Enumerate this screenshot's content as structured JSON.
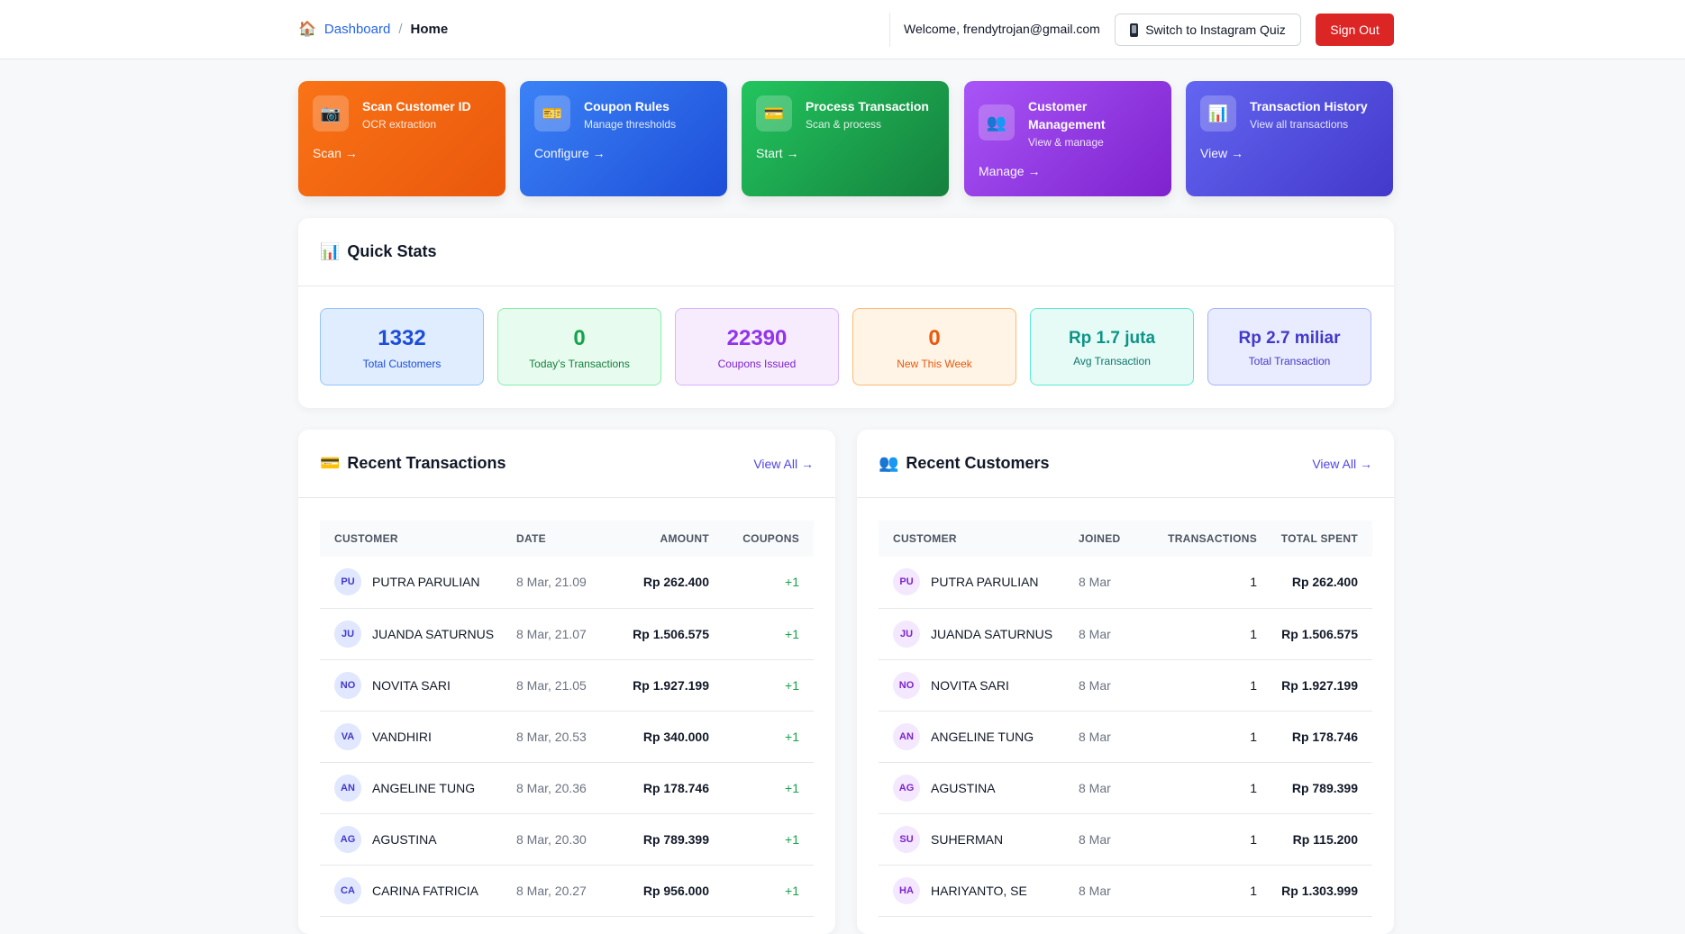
{
  "header": {
    "breadcrumb_root": "Dashboard",
    "breadcrumb_sep": "/",
    "breadcrumb_current": "Home",
    "welcome": "Welcome, frendytrojan@gmail.com",
    "switch_label": "Switch to Instagram Quiz",
    "signout_label": "Sign Out"
  },
  "cards": [
    {
      "title": "Scan Customer ID",
      "subtitle": "OCR extraction",
      "action": "Scan →",
      "icon": "camera-icon",
      "color": "#f97316"
    },
    {
      "title": "Coupon Rules",
      "subtitle": "Manage thresholds",
      "action": "Configure →",
      "icon": "ticket-icon",
      "color": "#2563eb"
    },
    {
      "title": "Process Transaction",
      "subtitle": "Scan & process",
      "action": "Start →",
      "icon": "credit-card-icon",
      "color": "#16a34a"
    },
    {
      "title": "Customer Management",
      "subtitle": "View & manage",
      "action": "Manage →",
      "icon": "users-icon",
      "color": "#9333ea"
    },
    {
      "title": "Transaction History",
      "subtitle": "View all transactions",
      "action": "View →",
      "icon": "chart-icon",
      "color": "#4f46e5"
    }
  ],
  "quick_stats": {
    "title": "Quick Stats",
    "items": [
      {
        "value": "1332",
        "label": "Total Customers"
      },
      {
        "value": "0",
        "label": "Today's Transactions"
      },
      {
        "value": "22390",
        "label": "Coupons Issued"
      },
      {
        "value": "0",
        "label": "New This Week"
      },
      {
        "value": "Rp 1.7 juta",
        "label": "Avg Transaction"
      },
      {
        "value": "Rp 2.7 miliar",
        "label": "Total Transaction"
      }
    ]
  },
  "recent_transactions": {
    "title": "Recent Transactions",
    "view_all": "View All →",
    "columns": [
      "Customer",
      "Date",
      "Amount",
      "Coupons"
    ],
    "rows": [
      {
        "initials": "PU",
        "name": "PUTRA PARULIAN",
        "date": "8 Mar, 21.09",
        "amount": "Rp 262.400",
        "coupons": "+1"
      },
      {
        "initials": "JU",
        "name": "JUANDA SATURNUS",
        "date": "8 Mar, 21.07",
        "amount": "Rp 1.506.575",
        "coupons": "+1"
      },
      {
        "initials": "NO",
        "name": "NOVITA SARI",
        "date": "8 Mar, 21.05",
        "amount": "Rp 1.927.199",
        "coupons": "+1"
      },
      {
        "initials": "VA",
        "name": "VANDHIRI",
        "date": "8 Mar, 20.53",
        "amount": "Rp 340.000",
        "coupons": "+1"
      },
      {
        "initials": "AN",
        "name": "ANGELINE TUNG",
        "date": "8 Mar, 20.36",
        "amount": "Rp 178.746",
        "coupons": "+1"
      },
      {
        "initials": "AG",
        "name": "AGUSTINA",
        "date": "8 Mar, 20.30",
        "amount": "Rp 789.399",
        "coupons": "+1"
      },
      {
        "initials": "CA",
        "name": "CARINA FATRICIA",
        "date": "8 Mar, 20.27",
        "amount": "Rp 956.000",
        "coupons": "+1"
      }
    ]
  },
  "recent_customers": {
    "title": "Recent Customers",
    "view_all": "View All →",
    "columns": [
      "Customer",
      "Joined",
      "Transactions",
      "Total Spent"
    ],
    "rows": [
      {
        "initials": "PU",
        "name": "PUTRA PARULIAN",
        "joined": "8 Mar",
        "transactions": "1",
        "total": "Rp 262.400"
      },
      {
        "initials": "JU",
        "name": "JUANDA SATURNUS",
        "joined": "8 Mar",
        "transactions": "1",
        "total": "Rp 1.506.575"
      },
      {
        "initials": "NO",
        "name": "NOVITA SARI",
        "joined": "8 Mar",
        "transactions": "1",
        "total": "Rp 1.927.199"
      },
      {
        "initials": "AN",
        "name": "ANGELINE TUNG",
        "joined": "8 Mar",
        "transactions": "1",
        "total": "Rp 178.746"
      },
      {
        "initials": "AG",
        "name": "AGUSTINA",
        "joined": "8 Mar",
        "transactions": "1",
        "total": "Rp 789.399"
      },
      {
        "initials": "SU",
        "name": "SUHERMAN",
        "joined": "8 Mar",
        "transactions": "1",
        "total": "Rp 115.200"
      },
      {
        "initials": "HA",
        "name": "HARIYANTO, SE",
        "joined": "8 Mar",
        "transactions": "1",
        "total": "Rp 1.303.999"
      }
    ]
  }
}
